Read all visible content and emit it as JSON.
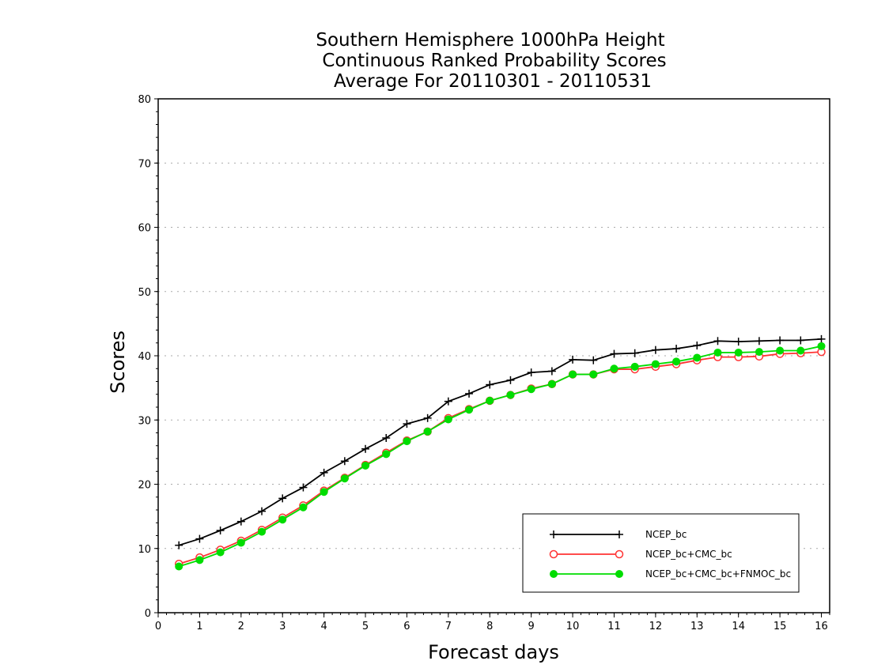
{
  "chart_data": {
    "type": "line",
    "title": [
      "Southern Hemisphere 1000hPa Height",
      "Continuous Ranked Probability Scores",
      "Average For 20110301 - 20110531"
    ],
    "xlabel": "Forecast days",
    "ylabel": "Scores",
    "xlim": [
      0,
      16.2
    ],
    "ylim": [
      0,
      80
    ],
    "xticks": [
      "0",
      "1",
      "2",
      "3",
      "4",
      "5",
      "6",
      "7",
      "8",
      "9",
      "10",
      "11",
      "12",
      "13",
      "14",
      "15",
      "16"
    ],
    "yticks": [
      "0",
      "10",
      "20",
      "30",
      "40",
      "50",
      "60",
      "70",
      "80"
    ],
    "grid": "horizontal dotted",
    "legend_position": "bottom-right",
    "x": [
      0.5,
      1,
      1.5,
      2,
      2.5,
      3,
      3.5,
      4,
      4.5,
      5,
      5.5,
      6,
      6.5,
      7,
      7.5,
      8,
      8.5,
      9,
      9.5,
      10,
      10.5,
      11,
      11.5,
      12,
      12.5,
      13,
      13.5,
      14,
      14.5,
      15,
      15.5,
      16
    ],
    "series": [
      {
        "name": "NCEP_bc",
        "color": "#000000",
        "marker": "plus",
        "values": [
          10.5,
          11.5,
          12.8,
          14.2,
          15.8,
          17.8,
          19.5,
          21.8,
          23.6,
          25.5,
          27.2,
          29.4,
          30.3,
          32.9,
          34.1,
          35.5,
          36.2,
          37.4,
          37.6,
          39.4,
          39.3,
          40.3,
          40.4,
          40.9,
          41.1,
          41.6,
          42.3,
          42.2,
          42.3,
          42.4,
          42.4,
          42.6
        ]
      },
      {
        "name": "NCEP_bc+CMC_bc",
        "color": "#ff3333",
        "marker": "open-circle",
        "values": [
          7.6,
          8.6,
          9.8,
          11.2,
          12.9,
          14.8,
          16.7,
          19.0,
          21.0,
          23.0,
          24.9,
          26.8,
          28.2,
          30.3,
          31.7,
          33.0,
          33.9,
          34.9,
          35.6,
          37.1,
          37.1,
          37.9,
          37.9,
          38.3,
          38.7,
          39.3,
          39.8,
          39.8,
          39.9,
          40.3,
          40.4,
          40.6
        ]
      },
      {
        "name": "NCEP_bc+CMC_bc+FNMOC_bc",
        "color": "#00dd00",
        "marker": "filled-circle",
        "values": [
          7.2,
          8.2,
          9.4,
          10.9,
          12.6,
          14.5,
          16.4,
          18.8,
          20.9,
          22.9,
          24.7,
          26.7,
          28.2,
          30.1,
          31.6,
          33.0,
          33.9,
          34.8,
          35.6,
          37.1,
          37.1,
          38.0,
          38.3,
          38.7,
          39.1,
          39.7,
          40.5,
          40.5,
          40.6,
          40.8,
          40.8,
          41.5
        ]
      }
    ]
  }
}
